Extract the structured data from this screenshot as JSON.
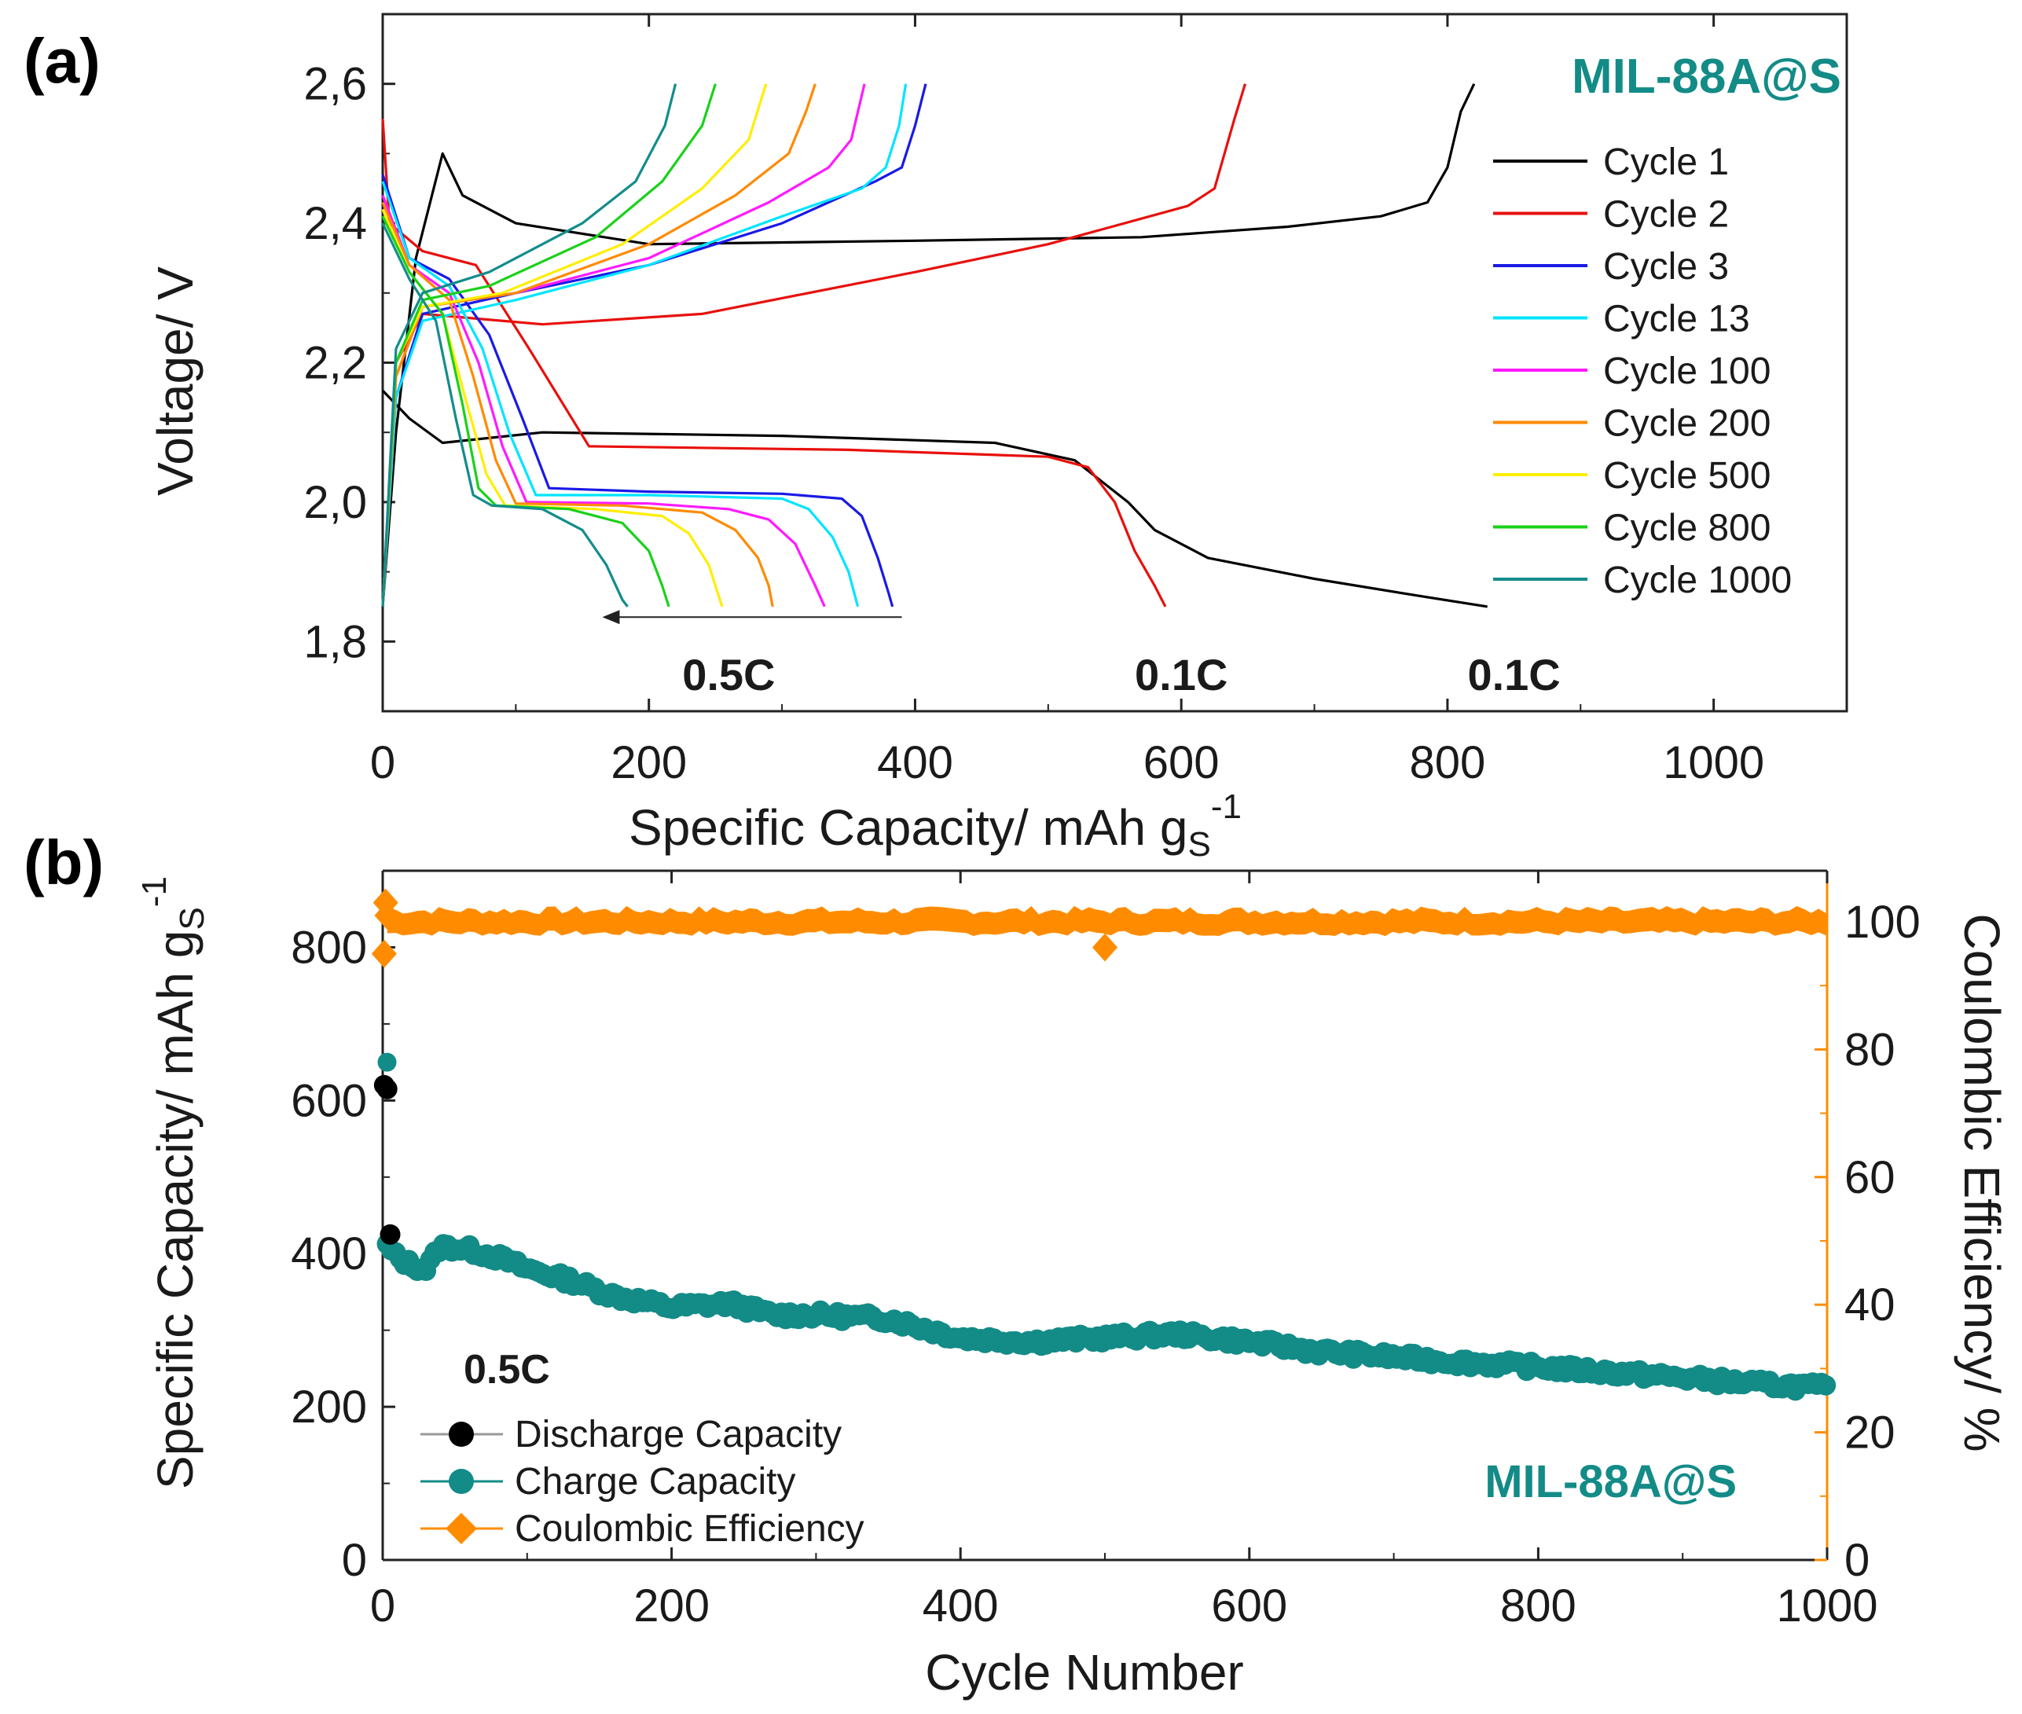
{
  "chart_data": [
    {
      "panel": "(a)",
      "type": "line",
      "sample": "MIL-88A@S",
      "xlabel": "Specific Capacity/ mAh g",
      "xlabel_sub": "S",
      "xlabel_sup": "-1",
      "ylabel": "Voltage/ V",
      "xlim": [
        0,
        1100
      ],
      "ylim": [
        1.7,
        2.7
      ],
      "xticks": [
        0,
        200,
        400,
        600,
        800,
        1000
      ],
      "xtick_labels": [
        "0",
        "200",
        "400",
        "600",
        "800",
        "1000"
      ],
      "yticks": [
        1.8,
        2.0,
        2.2,
        2.4,
        2.6
      ],
      "ytick_labels": [
        "1,8",
        "2,0",
        "2,2",
        "2,4",
        "2,6"
      ],
      "legend_position": "right",
      "rate_labels": [
        {
          "text": "0.5C",
          "x": 260,
          "y": 1.755
        },
        {
          "text": "0.1C",
          "x": 600,
          "y": 1.755
        },
        {
          "text": "0.1C",
          "x": 850,
          "y": 1.755
        }
      ],
      "arrow": {
        "from": [
          390,
          1.835
        ],
        "to": [
          165,
          1.835
        ]
      },
      "series": [
        {
          "name": "Cycle 1",
          "color": "#000000",
          "discharge": [
            [
              0,
              2.16
            ],
            [
              20,
              2.12
            ],
            [
              45,
              2.085
            ],
            [
              120,
              2.1
            ],
            [
              300,
              2.095
            ],
            [
              460,
              2.085
            ],
            [
              520,
              2.06
            ],
            [
              560,
              2.0
            ],
            [
              580,
              1.96
            ],
            [
              620,
              1.92
            ],
            [
              700,
              1.89
            ],
            [
              780,
              1.865
            ],
            [
              830,
              1.85
            ]
          ],
          "charge": [
            [
              0,
              1.85
            ],
            [
              10,
              2.1
            ],
            [
              25,
              2.35
            ],
            [
              45,
              2.5
            ],
            [
              60,
              2.44
            ],
            [
              100,
              2.4
            ],
            [
              200,
              2.37
            ],
            [
              400,
              2.375
            ],
            [
              570,
              2.38
            ],
            [
              680,
              2.395
            ],
            [
              750,
              2.41
            ],
            [
              785,
              2.43
            ],
            [
              800,
              2.48
            ],
            [
              810,
              2.56
            ],
            [
              820,
              2.6
            ]
          ]
        },
        {
          "name": "Cycle 2",
          "color": "#e8100c",
          "discharge": [
            [
              0,
              2.55
            ],
            [
              5,
              2.4
            ],
            [
              30,
              2.36
            ],
            [
              70,
              2.34
            ],
            [
              110,
              2.22
            ],
            [
              155,
              2.08
            ],
            [
              350,
              2.075
            ],
            [
              500,
              2.065
            ],
            [
              530,
              2.05
            ],
            [
              550,
              2.0
            ],
            [
              565,
              1.93
            ],
            [
              580,
              1.88
            ],
            [
              588,
              1.85
            ]
          ],
          "charge": [
            [
              0,
              1.85
            ],
            [
              10,
              2.2
            ],
            [
              30,
              2.27
            ],
            [
              120,
              2.255
            ],
            [
              240,
              2.27
            ],
            [
              400,
              2.33
            ],
            [
              500,
              2.37
            ],
            [
              605,
              2.425
            ],
            [
              625,
              2.45
            ],
            [
              640,
              2.55
            ],
            [
              648,
              2.6
            ]
          ]
        },
        {
          "name": "Cycle 3",
          "color": "#1a1ae6",
          "discharge": [
            [
              0,
              2.47
            ],
            [
              20,
              2.35
            ],
            [
              50,
              2.32
            ],
            [
              80,
              2.24
            ],
            [
              105,
              2.12
            ],
            [
              125,
              2.02
            ],
            [
              200,
              2.015
            ],
            [
              300,
              2.012
            ],
            [
              345,
              2.005
            ],
            [
              360,
              1.98
            ],
            [
              372,
              1.92
            ],
            [
              380,
              1.87
            ],
            [
              383,
              1.85
            ]
          ],
          "charge": [
            [
              0,
              1.85
            ],
            [
              10,
              2.15
            ],
            [
              30,
              2.27
            ],
            [
              100,
              2.3
            ],
            [
              200,
              2.34
            ],
            [
              300,
              2.4
            ],
            [
              370,
              2.46
            ],
            [
              390,
              2.48
            ],
            [
              400,
              2.54
            ],
            [
              408,
              2.6
            ]
          ]
        },
        {
          "name": "Cycle 13",
          "color": "#00e5ff",
          "discharge": [
            [
              0,
              2.46
            ],
            [
              20,
              2.35
            ],
            [
              50,
              2.31
            ],
            [
              75,
              2.22
            ],
            [
              95,
              2.1
            ],
            [
              115,
              2.01
            ],
            [
              200,
              2.01
            ],
            [
              300,
              2.005
            ],
            [
              320,
              1.99
            ],
            [
              338,
              1.95
            ],
            [
              350,
              1.9
            ],
            [
              357,
              1.85
            ]
          ],
          "charge": [
            [
              0,
              1.85
            ],
            [
              10,
              2.15
            ],
            [
              30,
              2.26
            ],
            [
              100,
              2.29
            ],
            [
              200,
              2.34
            ],
            [
              300,
              2.41
            ],
            [
              360,
              2.45
            ],
            [
              378,
              2.48
            ],
            [
              388,
              2.54
            ],
            [
              393,
              2.6
            ]
          ]
        },
        {
          "name": "Cycle 100",
          "color": "#ff1aff",
          "discharge": [
            [
              0,
              2.44
            ],
            [
              20,
              2.34
            ],
            [
              50,
              2.3
            ],
            [
              72,
              2.2
            ],
            [
              90,
              2.08
            ],
            [
              108,
              2.0
            ],
            [
              200,
              1.998
            ],
            [
              260,
              1.99
            ],
            [
              290,
              1.975
            ],
            [
              310,
              1.94
            ],
            [
              325,
              1.88
            ],
            [
              332,
              1.85
            ]
          ],
          "charge": [
            [
              0,
              1.85
            ],
            [
              10,
              2.18
            ],
            [
              30,
              2.28
            ],
            [
              100,
              2.3
            ],
            [
              200,
              2.35
            ],
            [
              290,
              2.43
            ],
            [
              335,
              2.48
            ],
            [
              352,
              2.52
            ],
            [
              362,
              2.6
            ]
          ]
        },
        {
          "name": "Cycle 200",
          "color": "#ff8a00",
          "discharge": [
            [
              0,
              2.43
            ],
            [
              20,
              2.34
            ],
            [
              50,
              2.29
            ],
            [
              68,
              2.18
            ],
            [
              85,
              2.06
            ],
            [
              100,
              1.998
            ],
            [
              180,
              1.995
            ],
            [
              240,
              1.985
            ],
            [
              265,
              1.96
            ],
            [
              282,
              1.92
            ],
            [
              290,
              1.88
            ],
            [
              293,
              1.85
            ]
          ],
          "charge": [
            [
              0,
              1.85
            ],
            [
              10,
              2.18
            ],
            [
              30,
              2.28
            ],
            [
              100,
              2.3
            ],
            [
              200,
              2.37
            ],
            [
              265,
              2.44
            ],
            [
              305,
              2.5
            ],
            [
              318,
              2.56
            ],
            [
              325,
              2.6
            ]
          ]
        },
        {
          "name": "Cycle 500",
          "color": "#ffee00",
          "discharge": [
            [
              0,
              2.42
            ],
            [
              20,
              2.33
            ],
            [
              45,
              2.27
            ],
            [
              62,
              2.15
            ],
            [
              78,
              2.04
            ],
            [
              92,
              1.995
            ],
            [
              160,
              1.99
            ],
            [
              210,
              1.98
            ],
            [
              230,
              1.955
            ],
            [
              245,
              1.91
            ],
            [
              255,
              1.85
            ]
          ],
          "charge": [
            [
              0,
              1.85
            ],
            [
              10,
              2.2
            ],
            [
              30,
              2.28
            ],
            [
              90,
              2.3
            ],
            [
              180,
              2.37
            ],
            [
              240,
              2.45
            ],
            [
              275,
              2.52
            ],
            [
              288,
              2.6
            ]
          ]
        },
        {
          "name": "Cycle 800",
          "color": "#1ad11a",
          "discharge": [
            [
              0,
              2.41
            ],
            [
              20,
              2.33
            ],
            [
              45,
              2.27
            ],
            [
              60,
              2.14
            ],
            [
              72,
              2.02
            ],
            [
              85,
              1.995
            ],
            [
              140,
              1.99
            ],
            [
              180,
              1.97
            ],
            [
              200,
              1.93
            ],
            [
              210,
              1.88
            ],
            [
              215,
              1.85
            ]
          ],
          "charge": [
            [
              0,
              1.85
            ],
            [
              10,
              2.2
            ],
            [
              30,
              2.29
            ],
            [
              80,
              2.31
            ],
            [
              160,
              2.38
            ],
            [
              210,
              2.46
            ],
            [
              240,
              2.54
            ],
            [
              250,
              2.6
            ]
          ]
        },
        {
          "name": "Cycle 1000",
          "color": "#148c8c",
          "discharge": [
            [
              0,
              2.4
            ],
            [
              20,
              2.32
            ],
            [
              40,
              2.26
            ],
            [
              55,
              2.12
            ],
            [
              68,
              2.01
            ],
            [
              82,
              1.995
            ],
            [
              120,
              1.99
            ],
            [
              150,
              1.96
            ],
            [
              168,
              1.91
            ],
            [
              180,
              1.86
            ],
            [
              184,
              1.85
            ]
          ],
          "charge": [
            [
              0,
              1.85
            ],
            [
              10,
              2.22
            ],
            [
              30,
              2.3
            ],
            [
              80,
              2.33
            ],
            [
              150,
              2.4
            ],
            [
              190,
              2.46
            ],
            [
              212,
              2.54
            ],
            [
              220,
              2.6
            ]
          ]
        }
      ]
    },
    {
      "panel": "(b)",
      "type": "scatter",
      "sample": "MIL-88A@S",
      "rate_label": "0.5C",
      "xlabel": "Cycle Number",
      "ylabel": "Specific Capacity/ mAh g",
      "ylabel_sub": "S",
      "ylabel_sup": "-1",
      "y2label": "Coulombic Efficiency/ %",
      "xlim": [
        0,
        1000
      ],
      "ylim": [
        0,
        900
      ],
      "y2lim": [
        0,
        108
      ],
      "xticks": [
        0,
        200,
        400,
        600,
        800,
        1000
      ],
      "yticks": [
        0,
        200,
        400,
        600,
        800
      ],
      "y2ticks": [
        0,
        20,
        40,
        60,
        80,
        100
      ],
      "legend_position": "bottom-left",
      "colors": {
        "discharge": "#000000",
        "charge": "#138b87",
        "ce": "#ff8c00",
        "sample_label": "#138b87"
      },
      "legend": [
        "Discharge Capacity",
        "Charge Capacity",
        "Coulombic Efficiency"
      ],
      "series": [
        {
          "name": "Discharge Capacity",
          "x": [
            1,
            2,
            3
          ],
          "y": [
            620,
            615,
            425
          ]
        },
        {
          "name": "Charge Capacity",
          "trend_x": [
            1,
            3,
            10,
            20,
            30,
            40,
            60,
            80,
            100,
            130,
            160,
            200,
            240,
            270,
            300,
            350,
            400,
            450,
            500,
            550,
            600,
            650,
            700,
            750,
            800,
            850,
            900,
            950,
            1000
          ],
          "trend_y": [
            650,
            410,
            395,
            385,
            380,
            410,
            405,
            395,
            380,
            365,
            345,
            330,
            335,
            320,
            320,
            315,
            290,
            285,
            290,
            295,
            285,
            272,
            265,
            258,
            252,
            245,
            238,
            230,
            225
          ]
        },
        {
          "name": "Coulombic Efficiency",
          "baseline": 100,
          "x": [
            1,
            2,
            3,
            500
          ],
          "y": [
            95,
            103,
            101,
            96
          ]
        }
      ]
    }
  ],
  "labels": {
    "panel_a": "(a)",
    "panel_b": "(b)",
    "sample_a": "MIL-88A@S",
    "sample_b": "MIL-88A@S",
    "rate_b": "0.5C"
  }
}
